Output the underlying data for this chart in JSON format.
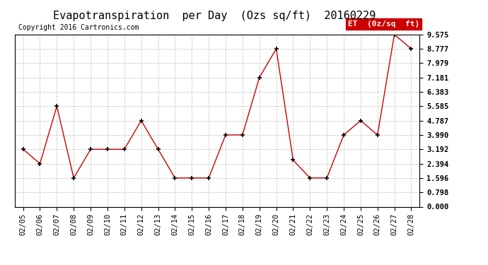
{
  "title": "Evapotranspiration  per Day  (Ozs sq/ft)  20160229",
  "copyright": "Copyright 2016 Cartronics.com",
  "legend_label": "ET  (0z/sq  ft)",
  "x_labels": [
    "02/05",
    "02/06",
    "02/07",
    "02/08",
    "02/09",
    "02/10",
    "02/11",
    "02/12",
    "02/13",
    "02/14",
    "02/15",
    "02/16",
    "02/17",
    "02/18",
    "02/19",
    "02/20",
    "02/21",
    "02/22",
    "02/23",
    "02/24",
    "02/25",
    "02/26",
    "02/27",
    "02/28"
  ],
  "y_values": [
    3.192,
    2.394,
    5.585,
    1.596,
    3.192,
    3.192,
    3.192,
    4.787,
    3.192,
    1.596,
    1.596,
    1.596,
    3.99,
    3.99,
    7.181,
    8.777,
    2.594,
    1.596,
    1.596,
    3.99,
    4.787,
    3.99,
    9.575,
    8.777
  ],
  "y_ticks": [
    0.0,
    0.798,
    1.596,
    2.394,
    3.192,
    3.99,
    4.787,
    5.585,
    6.383,
    7.181,
    7.979,
    8.777,
    9.575
  ],
  "ylim": [
    0.0,
    9.575
  ],
  "line_color": "#cc0000",
  "marker_color": "#000000",
  "grid_color": "#c8c8c8",
  "background_color": "#ffffff",
  "legend_bg": "#cc0000",
  "legend_fg": "#ffffff",
  "border_color": "#000000",
  "title_fontsize": 11,
  "copyright_fontsize": 7,
  "tick_fontsize": 7.5,
  "legend_fontsize": 8
}
